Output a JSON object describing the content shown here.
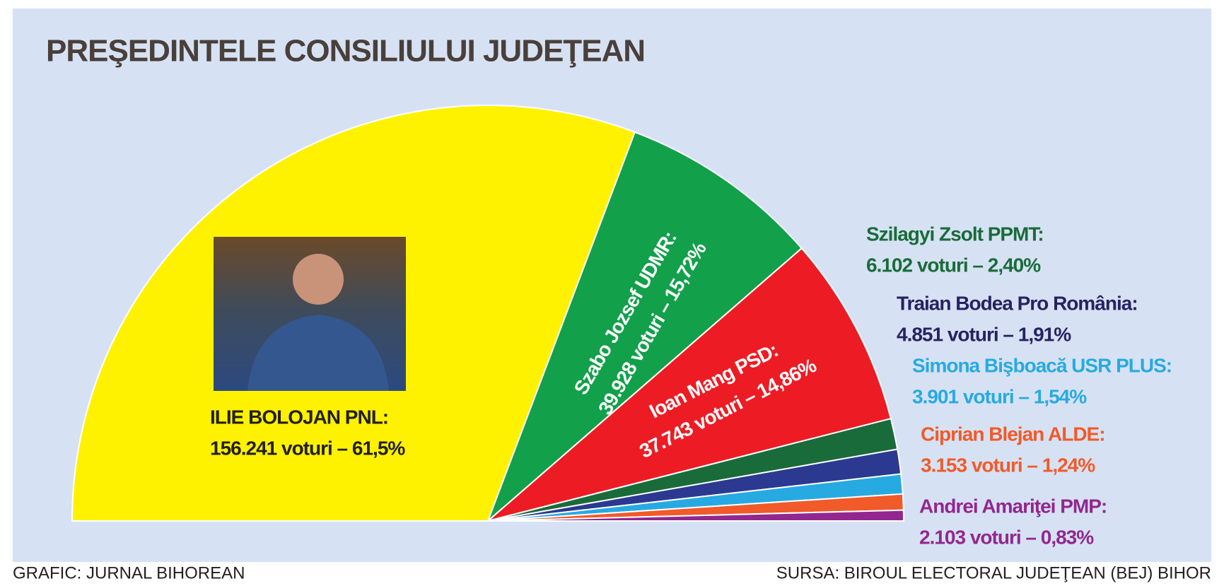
{
  "chart_data": {
    "type": "pie",
    "title": "PREŞEDINTELE CONSILIULUI JUDEŢEAN",
    "categories": [
      "ILIE BOLOJAN PNL:",
      "Szabo Jozsef UDMR:",
      "Ioan Mang PSD:",
      "Szilagyi Zsolt PPMT:",
      "Traian Bodea Pro România:",
      "Simona Bişboacă USR PLUS:",
      "Ciprian Blejan ALDE:",
      "Andrei Amariţei PMP:"
    ],
    "values": [
      61.5,
      15.72,
      14.86,
      2.4,
      1.91,
      1.54,
      1.24,
      0.83
    ],
    "value_labels": [
      "156.241 voturi – 61,5%",
      "39.928 voturi – 15,72%",
      "37.743 voturi – 14,86%",
      "6.102 voturi – 2,40%",
      "4.851 voturi – 1,91%",
      "3.901 voturi – 1,54%",
      "3.153 voturi – 1,24%",
      "2.103 voturi – 0,83%"
    ],
    "colors": [
      "#fff200",
      "#12a04a",
      "#ed1c24",
      "#1a6b3a",
      "#2b3990",
      "#27aae1",
      "#f15a29",
      "#92278f"
    ],
    "label_colors": [
      "#231f20",
      "#ffffff",
      "#ffffff",
      "#1a6b3a",
      "#262262",
      "#27aae1",
      "#f15a29",
      "#92278f"
    ],
    "credit": "GRAFIC: JURNAL BIHOREAN",
    "source": "SURSA: BIROUL ELECTORAL JUDEŢEAN (BEJ) BIHOR"
  }
}
